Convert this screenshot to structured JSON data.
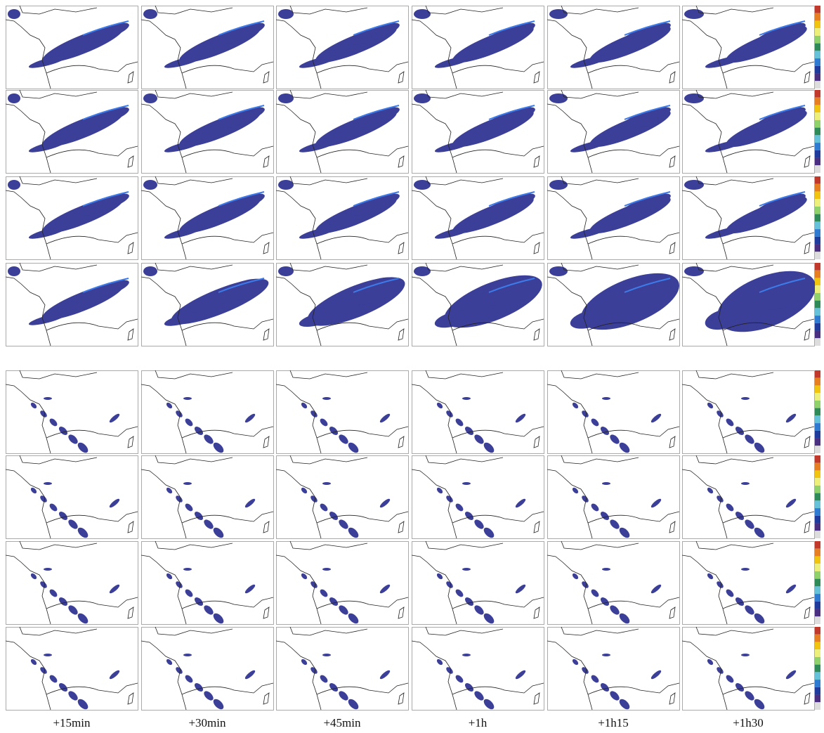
{
  "columns": [
    "+15min",
    "+30min",
    "+45min",
    "+1h",
    "+1h15",
    "+1h30"
  ]
}
